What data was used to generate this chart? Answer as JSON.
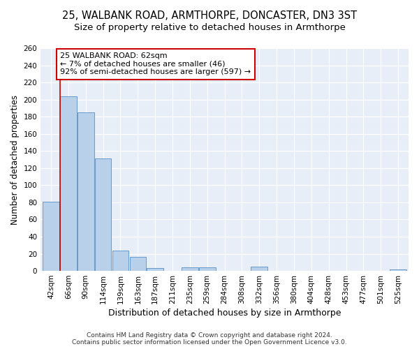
{
  "title": "25, WALBANK ROAD, ARMTHORPE, DONCASTER, DN3 3ST",
  "subtitle": "Size of property relative to detached houses in Armthorpe",
  "xlabel": "Distribution of detached houses by size in Armthorpe",
  "ylabel": "Number of detached properties",
  "categories": [
    "42sqm",
    "66sqm",
    "90sqm",
    "114sqm",
    "139sqm",
    "163sqm",
    "187sqm",
    "211sqm",
    "235sqm",
    "259sqm",
    "284sqm",
    "308sqm",
    "332sqm",
    "356sqm",
    "380sqm",
    "404sqm",
    "428sqm",
    "453sqm",
    "477sqm",
    "501sqm",
    "525sqm"
  ],
  "values": [
    81,
    204,
    185,
    131,
    24,
    16,
    3,
    0,
    4,
    4,
    0,
    0,
    5,
    0,
    0,
    0,
    0,
    0,
    0,
    0,
    2
  ],
  "bar_color": "#b8d0ea",
  "bar_edge_color": "#6699cc",
  "vline_color": "#cc0000",
  "vline_x": 0.5,
  "annotation_text": "25 WALBANK ROAD: 62sqm\n← 7% of detached houses are smaller (46)\n92% of semi-detached houses are larger (597) →",
  "annotation_box_facecolor": "#ffffff",
  "annotation_box_edgecolor": "#cc0000",
  "ylim": [
    0,
    260
  ],
  "yticks": [
    0,
    20,
    40,
    60,
    80,
    100,
    120,
    140,
    160,
    180,
    200,
    220,
    240,
    260
  ],
  "bg_color": "#e8eef7",
  "grid_color": "#ffffff",
  "footer": "Contains HM Land Registry data © Crown copyright and database right 2024.\nContains public sector information licensed under the Open Government Licence v3.0.",
  "title_fontsize": 10.5,
  "subtitle_fontsize": 9.5,
  "xlabel_fontsize": 9,
  "ylabel_fontsize": 8.5,
  "tick_fontsize": 7.5,
  "annotation_fontsize": 8,
  "footer_fontsize": 6.5
}
